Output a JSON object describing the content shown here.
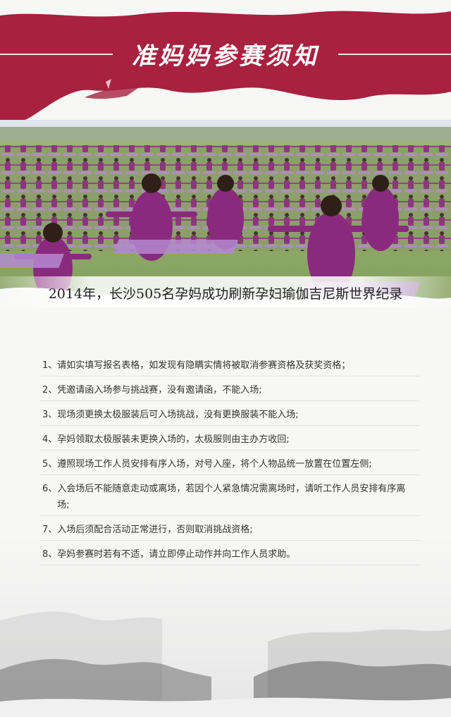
{
  "header": {
    "title": "准妈妈参赛须知"
  },
  "photo": {
    "caption": "2014年，长沙505名孕妈成功刷新孕妇瑜伽吉尼斯世界纪录"
  },
  "notes": [
    {
      "num": "1、",
      "text": "请如实填写报名表格，如发现有隐瞒实情将被取消参赛资格及获奖资格；"
    },
    {
      "num": "2、",
      "text": "凭邀请函入场参与挑战赛，没有邀请函，不能入场;"
    },
    {
      "num": "3、",
      "text": "现场须更换太极服装后可入场挑战，没有更换服装不能入场;"
    },
    {
      "num": "4、",
      "text": "孕妈领取太极服装未更换入场的，太极服则由主办方收回;"
    },
    {
      "num": "5、",
      "text": "遵照现场工作人员安排有序入场，对号入座，将个人物品统一放置在位置左侧;"
    },
    {
      "num": "6、",
      "text": "入会场后不能随意走动或离场，若因个人紧急情况需离场时，请听工作人员安排有序离场;"
    },
    {
      "num": "7、",
      "text": "入场后须配合活动正常进行，否则取消挑战资格;"
    },
    {
      "num": "8、",
      "text": "孕妈参赛时若有不适，请立即停止动作并向工作人员求助。"
    }
  ],
  "colors": {
    "banner": "#a8213f",
    "outfit": "#8a2a7e",
    "grass": "#8fae63",
    "mat": "#b58ad0",
    "text": "#333333"
  }
}
